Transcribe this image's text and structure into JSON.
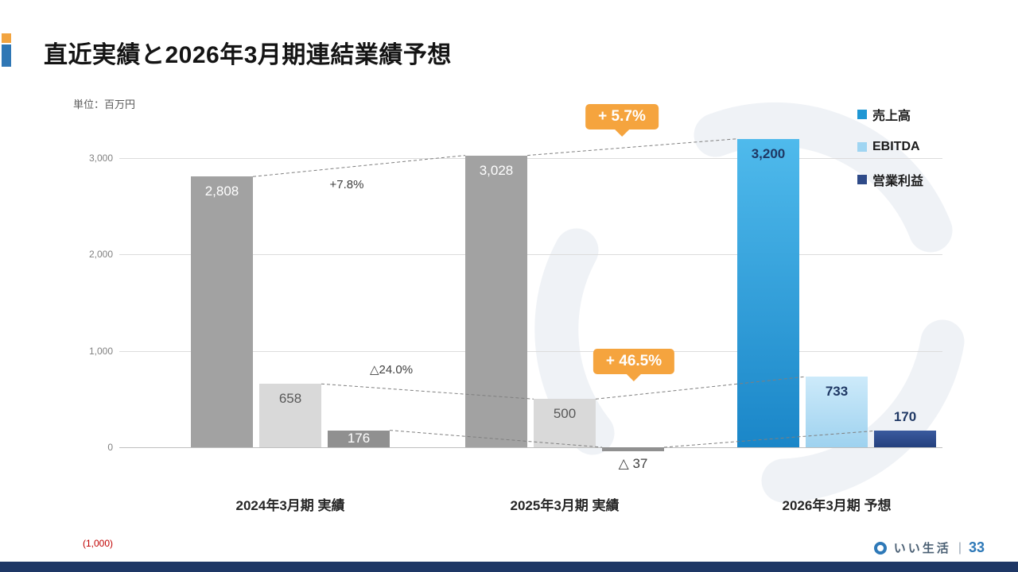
{
  "slide": {
    "title": "直近実績と2026年3月期連結業績予想",
    "page_number": "33",
    "brand_name": "いい生活",
    "separator": "|"
  },
  "chart": {
    "unit_label": "単位：百万円"
  },
  "chart_data": {
    "type": "bar",
    "title": "直近実績と2026年3月期連結業績予想",
    "unit": "百万円",
    "categories": [
      "2024年3月期 実績",
      "2025年3月期 実績",
      "2026年3月期 予想"
    ],
    "series": [
      {
        "name": "売上高",
        "values": [
          2808,
          3028,
          3200
        ],
        "labels": [
          "2,808",
          "3,028",
          "3,200"
        ],
        "bar_colors": [
          "#a2a2a2",
          "#a2a2a2",
          "gradient:#4fbaec,#1a86c8"
        ],
        "label_colors": [
          "#ffffff",
          "#ffffff",
          "#1f3864"
        ],
        "label_pos": [
          "inside",
          "inside",
          "inside"
        ],
        "label_bold": [
          false,
          false,
          true
        ],
        "legend_color": "#1f97d4"
      },
      {
        "name": "EBITDA",
        "values": [
          658,
          500,
          733
        ],
        "labels": [
          "658",
          "500",
          "733"
        ],
        "bar_colors": [
          "#d9d9d9",
          "#d9d9d9",
          "gradient:#cdeafa,#9ed2ef"
        ],
        "label_colors": [
          "#595959",
          "#595959",
          "#1f3864"
        ],
        "label_pos": [
          "inside",
          "inside",
          "inside"
        ],
        "label_bold": [
          false,
          false,
          true
        ],
        "legend_color": "#9fd5f2"
      },
      {
        "name": "営業利益",
        "values": [
          176,
          -37,
          170
        ],
        "labels": [
          "176",
          "△ 37",
          "170"
        ],
        "bar_colors": [
          "#909090",
          "#909090",
          "gradient:#3a5a9e,#24407e"
        ],
        "label_colors": [
          "#ffffff",
          "#404040",
          "#1f3864"
        ],
        "label_pos": [
          "inside",
          "below",
          "above"
        ],
        "label_bold": [
          false,
          false,
          true
        ],
        "legend_color": "#2e4a88"
      }
    ],
    "ylim": [
      -1000,
      3000
    ],
    "gridlines": [
      1000,
      2000,
      3000
    ],
    "yticks": [
      {
        "value": 3000,
        "label": "3,000",
        "color": "#808080"
      },
      {
        "value": 2000,
        "label": "2,000",
        "color": "#808080"
      },
      {
        "value": 1000,
        "label": "1,000",
        "color": "#808080"
      },
      {
        "value": 0,
        "label": "0",
        "color": "#808080"
      },
      {
        "value": -1000,
        "label": "(1,000)",
        "color": "#c00000"
      }
    ],
    "legend_position": "top-right",
    "annotations": {
      "plain": [
        {
          "text": "+7.8%"
        },
        {
          "text": "△24.0%"
        }
      ],
      "badges": [
        {
          "text": "+ 5.7%"
        },
        {
          "text": "+ 46.5%"
        }
      ],
      "badge_color": "#f5a43e"
    }
  }
}
